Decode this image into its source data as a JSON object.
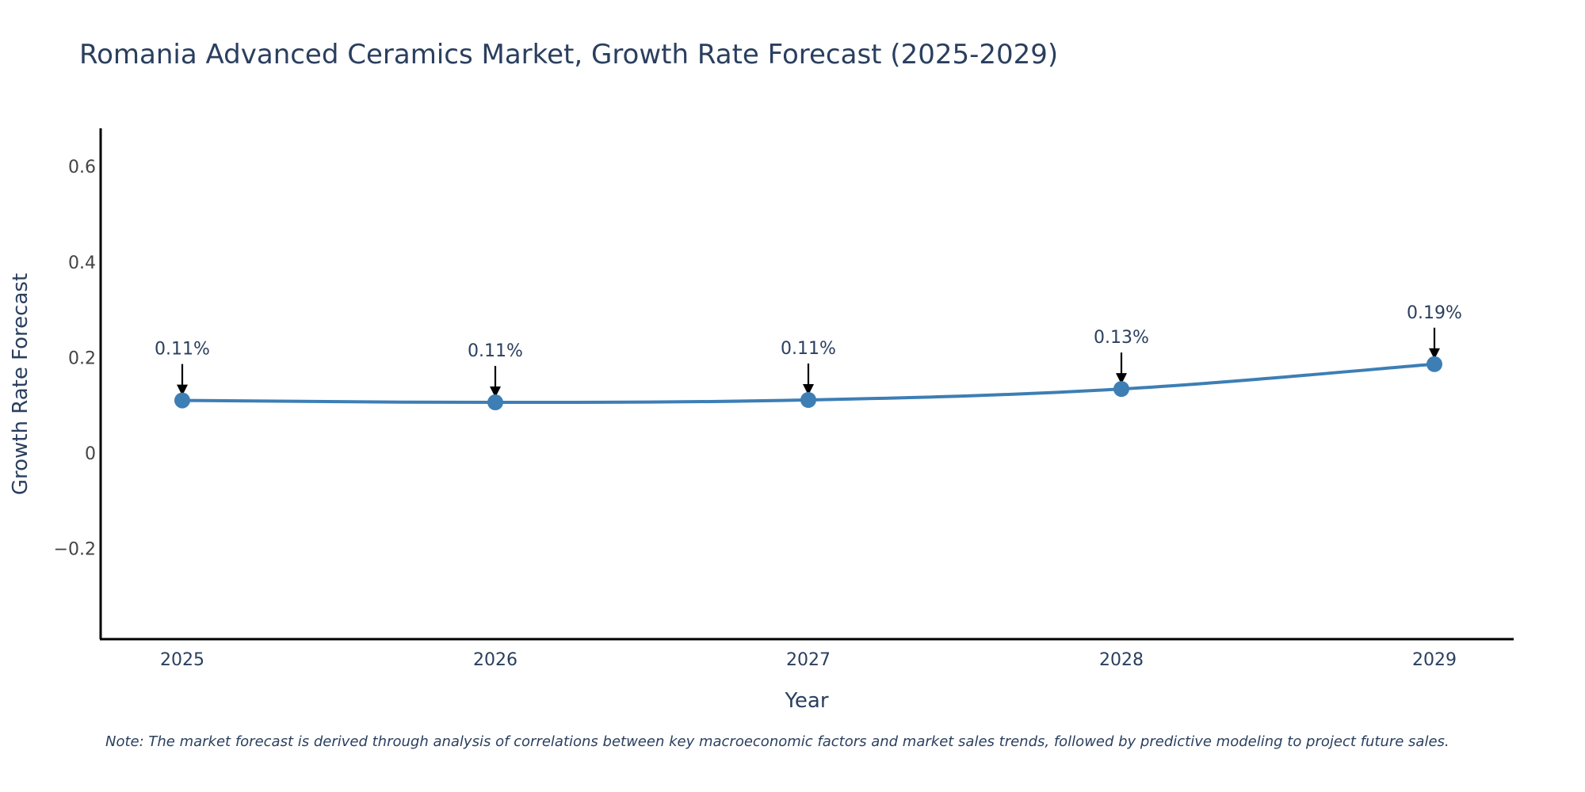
{
  "chart_data": {
    "type": "line",
    "title": "Romania Advanced Ceramics Market, Growth Rate Forecast (2025-2029)",
    "xlabel": "Year",
    "ylabel": "Growth Rate Forecast",
    "categories": [
      "2025",
      "2026",
      "2027",
      "2028",
      "2029"
    ],
    "series": [
      {
        "name": "Growth Rate Forecast",
        "values": [
          0.11,
          0.106,
          0.111,
          0.134,
          0.186
        ],
        "labels": [
          "0.11%",
          "0.11%",
          "0.11%",
          "0.13%",
          "0.19%"
        ],
        "color": "#3d7eb5"
      }
    ],
    "ylim": [
      -0.39,
      0.68
    ],
    "yticks": [
      {
        "value": 0.6,
        "label": "0.6"
      },
      {
        "value": 0.4,
        "label": "0.4"
      },
      {
        "value": 0.2,
        "label": "0.2"
      },
      {
        "value": 0,
        "label": "0"
      },
      {
        "value": -0.2,
        "label": "−0.2"
      }
    ],
    "grid": false,
    "note": "Note: The market forecast is derived through analysis of correlations between key macroeconomic factors and market sales trends, followed by predictive modeling to project future sales."
  }
}
